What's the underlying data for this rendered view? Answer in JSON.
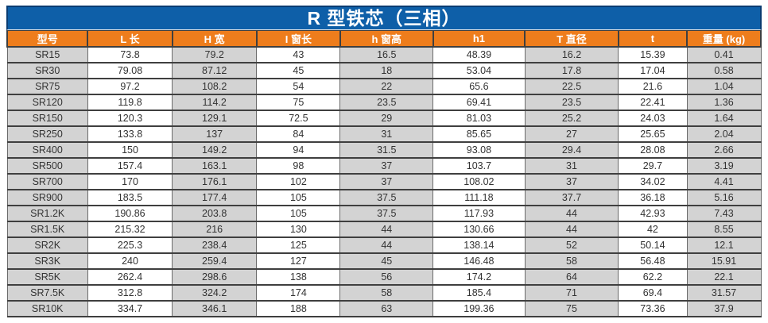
{
  "table": {
    "title": "R 型铁芯（三相）",
    "columns": [
      "型号",
      "L 长",
      "H 宽",
      "I 窗长",
      "h 窗高",
      "h1",
      "T 直径",
      "t",
      "重量 (kg)"
    ],
    "rows": [
      [
        "SR15",
        "73.8",
        "79.2",
        "43",
        "16.5",
        "48.39",
        "16.2",
        "15.39",
        "0.41"
      ],
      [
        "SR30",
        "79.08",
        "87.12",
        "45",
        "18",
        "53.04",
        "17.8",
        "17.04",
        "0.58"
      ],
      [
        "SR75",
        "97.2",
        "108.2",
        "54",
        "22",
        "65.6",
        "22.5",
        "21.6",
        "1.04"
      ],
      [
        "SR120",
        "119.8",
        "114.2",
        "75",
        "23.5",
        "69.41",
        "23.5",
        "22.41",
        "1.36"
      ],
      [
        "SR150",
        "120.3",
        "129.1",
        "72.5",
        "29",
        "81.03",
        "25.2",
        "24.03",
        "1.64"
      ],
      [
        "SR250",
        "133.8",
        "137",
        "84",
        "31",
        "85.65",
        "27",
        "25.65",
        "2.04"
      ],
      [
        "SR400",
        "150",
        "149.2",
        "94",
        "31.5",
        "93.08",
        "29.4",
        "28.08",
        "2.66"
      ],
      [
        "SR500",
        "157.4",
        "163.1",
        "98",
        "37",
        "103.7",
        "31",
        "29.7",
        "3.19"
      ],
      [
        "SR700",
        "170",
        "176.1",
        "102",
        "37",
        "108.02",
        "37",
        "34.02",
        "4.41"
      ],
      [
        "SR900",
        "183.5",
        "177.4",
        "105",
        "37.5",
        "111.18",
        "37.7",
        "36.18",
        "5.16"
      ],
      [
        "SR1.2K",
        "190.86",
        "203.8",
        "105",
        "37.5",
        "117.93",
        "44",
        "42.93",
        "7.43"
      ],
      [
        "SR1.5K",
        "215.32",
        "216",
        "130",
        "44",
        "130.66",
        "44",
        "42",
        "8.55"
      ],
      [
        "SR2K",
        "225.3",
        "238.4",
        "125",
        "44",
        "138.14",
        "52",
        "50.14",
        "12.1"
      ],
      [
        "SR3K",
        "240",
        "259.4",
        "127",
        "45",
        "146.48",
        "58",
        "56.48",
        "15.91"
      ],
      [
        "SR5K",
        "262.4",
        "298.6",
        "138",
        "56",
        "174.2",
        "64",
        "62.2",
        "22.1"
      ],
      [
        "SR7.5K",
        "312.8",
        "324.2",
        "174",
        "58",
        "185.4",
        "71",
        "69.4",
        "31.57"
      ],
      [
        "SR10K",
        "334.7",
        "346.1",
        "188",
        "63",
        "199.36",
        "75",
        "73.36",
        "37.9"
      ]
    ],
    "colors": {
      "title_bg": "#0e5fa8",
      "title_border": "#0a3c72",
      "header_bg": "#ee7d1c",
      "header_text": "#ffffff",
      "cell_gray": "#d3d3d3",
      "cell_white": "#ffffff",
      "grid": "#3f3f3f",
      "cell_text": "#333333"
    }
  }
}
